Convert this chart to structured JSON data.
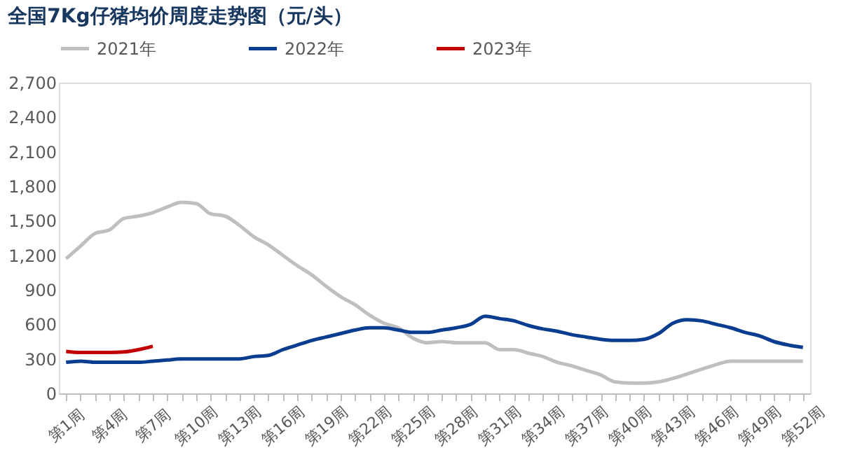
{
  "chart_data": {
    "type": "line",
    "title": "全国7Kg仔猪均价周度走势图（元/头）",
    "categories": [
      "第1周",
      null,
      null,
      "第4周",
      null,
      null,
      "第7周",
      null,
      null,
      "第10周",
      null,
      null,
      "第13周",
      null,
      null,
      "第16周",
      null,
      null,
      "第19周",
      null,
      null,
      "第22周",
      null,
      null,
      "第25周",
      null,
      null,
      "第28周",
      null,
      null,
      "第31周",
      null,
      null,
      "第34周",
      null,
      null,
      "第37周",
      null,
      null,
      "第40周",
      null,
      null,
      "第43周",
      null,
      null,
      "第46周",
      null,
      null,
      "第49周",
      null,
      null,
      "第52周"
    ],
    "series": [
      {
        "name": "2021年",
        "color": "#bfbfbf",
        "values": [
          1170,
          1280,
          1390,
          1420,
          1520,
          1540,
          1570,
          1620,
          1660,
          1650,
          1560,
          1540,
          1460,
          1360,
          1290,
          1200,
          1110,
          1030,
          930,
          840,
          770,
          680,
          610,
          570,
          480,
          440,
          450,
          440,
          440,
          440,
          380,
          380,
          350,
          320,
          270,
          240,
          200,
          160,
          100,
          90,
          90,
          100,
          130,
          170,
          210,
          250,
          280,
          280,
          280,
          280,
          280,
          280
        ]
      },
      {
        "name": "2022年",
        "color": "#0a3d8f",
        "values": [
          270,
          280,
          270,
          270,
          270,
          270,
          280,
          290,
          300,
          300,
          300,
          300,
          300,
          320,
          330,
          380,
          420,
          460,
          490,
          520,
          550,
          570,
          570,
          550,
          530,
          530,
          550,
          570,
          600,
          670,
          650,
          630,
          590,
          560,
          540,
          510,
          490,
          470,
          460,
          460,
          470,
          520,
          610,
          640,
          630,
          600,
          570,
          530,
          500,
          450,
          420,
          400
        ]
      },
      {
        "name": "2023年",
        "color": "#c00000",
        "values": [
          365,
          355,
          355,
          355,
          360,
          380,
          410,
          null,
          null,
          null,
          null,
          null,
          null,
          null,
          null,
          null,
          null,
          null,
          null,
          null,
          null,
          null,
          null,
          null,
          null,
          null,
          null,
          null,
          null,
          null,
          null,
          null,
          null,
          null,
          null,
          null,
          null,
          null,
          null,
          null,
          null,
          null,
          null,
          null,
          null,
          null,
          null,
          null,
          null,
          null,
          null,
          null
        ]
      }
    ],
    "ylim": [
      0,
      2700
    ],
    "yticks": [
      0,
      300,
      600,
      900,
      {
        "value": 1200,
        "label": "1,200"
      },
      {
        "value": 1500,
        "label": "1,500"
      },
      {
        "value": 1800,
        "label": "1,800"
      },
      {
        "value": 2100,
        "label": "2,100"
      },
      {
        "value": 2400,
        "label": "2,400"
      },
      {
        "value": 2700,
        "label": "2,700"
      }
    ],
    "legend": "top",
    "grid": false,
    "line_style": "solid",
    "marker": "none"
  }
}
